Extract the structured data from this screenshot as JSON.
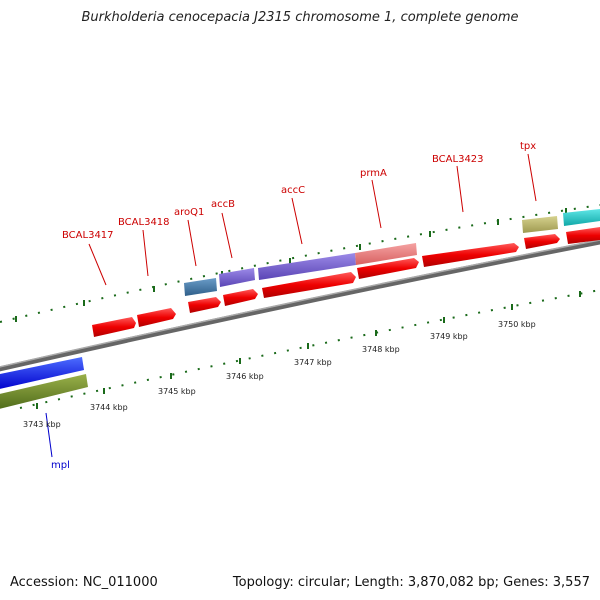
{
  "title": "Burkholderia cenocepacia J2315 chromosome 1, complete genome",
  "accession": "Accession: NC_011000",
  "summary": "Topology: circular; Length: 3,870,082 bp; Genes: 3,557",
  "colors": {
    "cds": "#ee0000",
    "backbone": "#888888",
    "tick": "#1a6a1a",
    "label_red": "#cc0000",
    "label_blue": "#0000cc"
  },
  "kbp_ticks": [
    "3743 kbp",
    "3744 kbp",
    "3745 kbp",
    "3746 kbp",
    "3747 kbp",
    "3748 kbp",
    "3749 kbp",
    "3750 kbp"
  ],
  "genes": [
    {
      "name": "mpl",
      "color": "blue"
    },
    {
      "name": "BCAL3417",
      "color": "red"
    },
    {
      "name": "BCAL3418",
      "color": "red"
    },
    {
      "name": "aroQ1",
      "color": "red"
    },
    {
      "name": "accB",
      "color": "red"
    },
    {
      "name": "accC",
      "color": "red"
    },
    {
      "name": "prmA",
      "color": "red"
    },
    {
      "name": "BCAL3423",
      "color": "red"
    },
    {
      "name": "tpx",
      "color": "red"
    }
  ]
}
